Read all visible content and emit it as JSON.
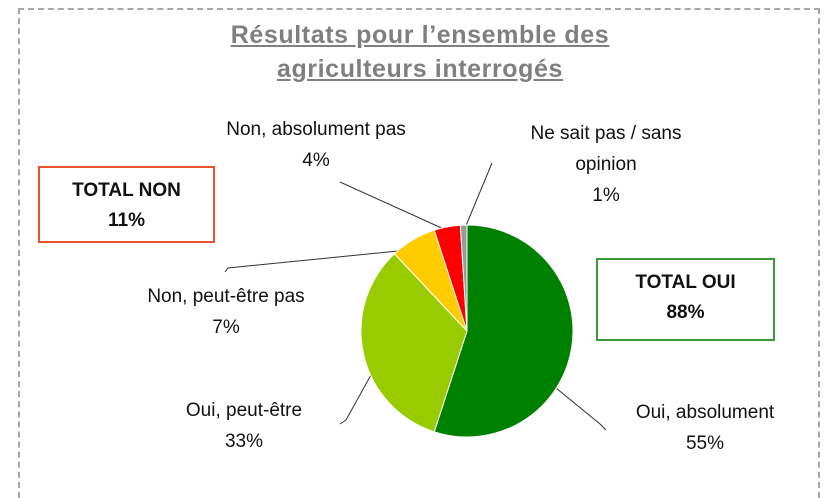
{
  "chart_data": {
    "type": "pie",
    "title": "Résultats pour l’ensemble des agriculteurs interrogés",
    "categories": [
      "Oui, absolument",
      "Oui, peut-être",
      "Non, peut-être pas",
      "Non, absolument pas",
      "Ne sait pas / sans opinion"
    ],
    "values": [
      55,
      33,
      7,
      4,
      1
    ],
    "value_labels": [
      "55%",
      "33%",
      "7%",
      "4%",
      "1%"
    ],
    "colors": [
      "#008000",
      "#99cc00",
      "#ffcc00",
      "#ff0000",
      "#999999"
    ],
    "annotations": [
      {
        "title": "TOTAL NON",
        "text": "11%",
        "color": "#e8532c"
      },
      {
        "title": "TOTAL OUI",
        "text": "88%",
        "color": "#3a9a3a"
      }
    ]
  }
}
